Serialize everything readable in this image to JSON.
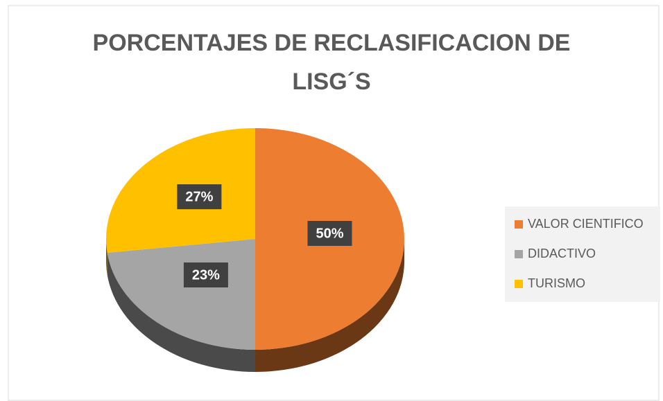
{
  "chart_data": {
    "type": "pie",
    "title": "PORCENTAJES DE RECLASIFICACION DE LISG´S",
    "categories": [
      "VALOR CIENTIFICO",
      "DIDACTIVO",
      "TURISMO"
    ],
    "values": [
      50,
      23,
      27
    ],
    "value_labels": [
      "50%",
      "23%",
      "27%"
    ],
    "colors": [
      "#ed7d31",
      "#a5a5a5",
      "#ffc000"
    ],
    "legend": "right"
  }
}
